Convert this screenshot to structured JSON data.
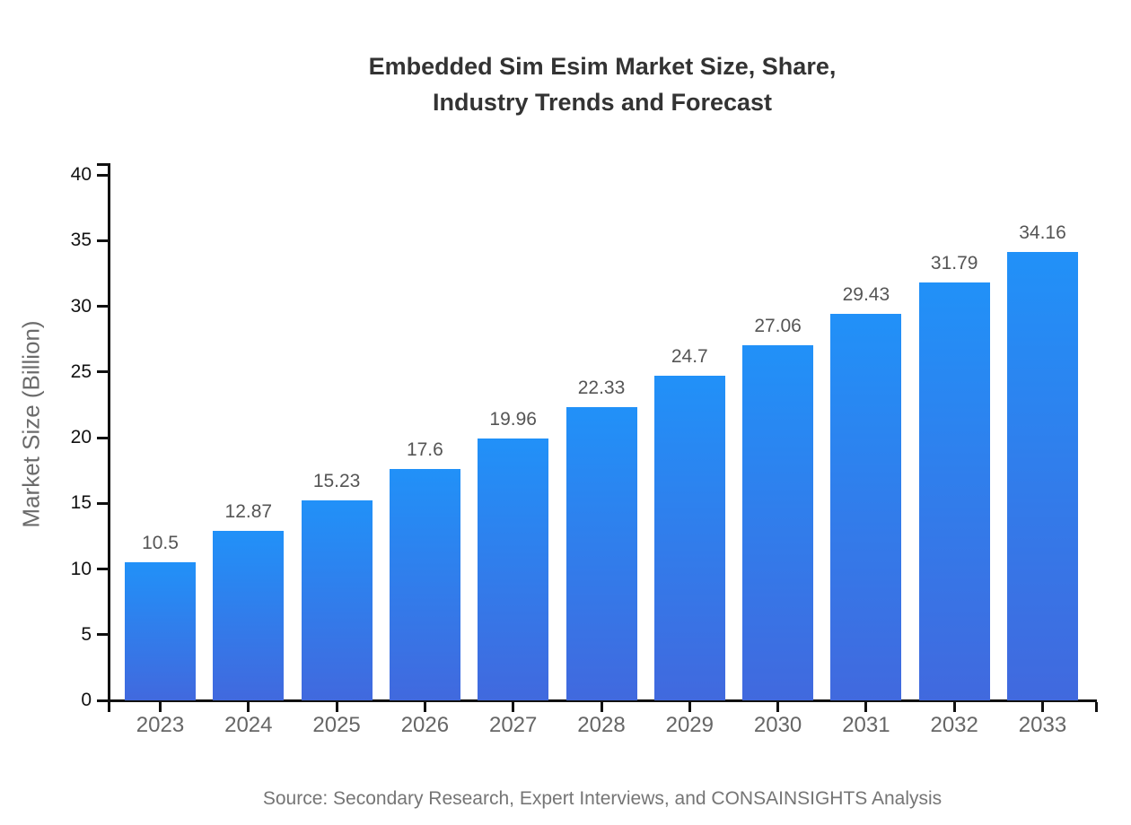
{
  "chart_data": {
    "type": "bar",
    "title": "Embedded Sim Esim Market Size, Share, Industry Trends and Forecast",
    "title_lines": [
      "Embedded Sim Esim Market Size, Share,",
      "Industry Trends and Forecast"
    ],
    "categories": [
      "2023",
      "2024",
      "2025",
      "2026",
      "2027",
      "2028",
      "2029",
      "2030",
      "2031",
      "2032",
      "2033"
    ],
    "values": [
      10.5,
      12.87,
      15.23,
      17.6,
      19.96,
      22.33,
      24.7,
      27.06,
      29.43,
      31.79,
      34.16
    ],
    "value_labels": [
      "10.5",
      "12.87",
      "15.23",
      "17.6",
      "19.96",
      "22.33",
      "24.7",
      "27.06",
      "29.43",
      "31.79",
      "34.16"
    ],
    "xlabel": "",
    "ylabel": "Market Size (Billion)",
    "ylim": [
      0,
      40
    ],
    "yticks": [
      0,
      5,
      10,
      15,
      20,
      25,
      30,
      35,
      40
    ],
    "grid": false,
    "legend": null,
    "colors": {
      "bar_gradient_top": "#2191F8",
      "bar_gradient_bottom": "#4169DE",
      "axis": "#111111",
      "title_text": "#333333",
      "x_tick_text": "#666666",
      "y_tick_text": "#111111",
      "value_label_text": "#555555",
      "source_text": "#757575"
    },
    "source_note": "Source: Secondary Research, Expert Interviews, and CONSAINSIGHTS Analysis"
  }
}
